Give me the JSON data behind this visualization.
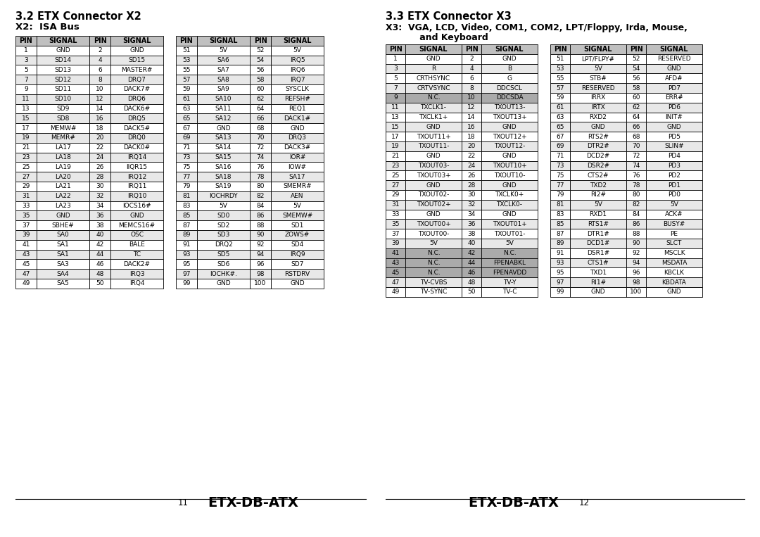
{
  "title_x2": "3.2 ETX Connector X2",
  "subtitle_x2": "X2:  ISA Bus",
  "title_x3": "3.3 ETX Connector X3",
  "subtitle_x3_line1": "X3:  VGA, LCD, Video, COM1, COM2, LPT/Floppy, Irda, Mouse,",
  "subtitle_x3_line2": "      and Keyboard",
  "footer_left_num": "11",
  "footer_right_num": "12",
  "footer_center_left": "ETX-DB-ATX",
  "footer_center_right": "ETX-DB-ATX",
  "bg_color": "#ffffff",
  "header_bg": "#c0c0c0",
  "row_white": "#ffffff",
  "row_gray": "#e8e8e8",
  "highlight_bg": "#aaaaaa",
  "x2_table1": [
    [
      1,
      "GND",
      2,
      "GND"
    ],
    [
      3,
      "SD14",
      4,
      "SD15"
    ],
    [
      5,
      "SD13",
      6,
      "MASTER#"
    ],
    [
      7,
      "SD12",
      8,
      "DRQ7"
    ],
    [
      9,
      "SD11",
      10,
      "DACK7#"
    ],
    [
      11,
      "SD10",
      12,
      "DRQ6"
    ],
    [
      13,
      "SD9",
      14,
      "DACK6#"
    ],
    [
      15,
      "SD8",
      16,
      "DRQ5"
    ],
    [
      17,
      "MEMW#",
      18,
      "DACK5#"
    ],
    [
      19,
      "MEMR#",
      20,
      "DRQ0"
    ],
    [
      21,
      "LA17",
      22,
      "DACK0#"
    ],
    [
      23,
      "LA18",
      24,
      "IRQ14"
    ],
    [
      25,
      "LA19",
      26,
      "IIQR15"
    ],
    [
      27,
      "LA20",
      28,
      "IRQ12"
    ],
    [
      29,
      "LA21",
      30,
      "IRQ11"
    ],
    [
      31,
      "LA22",
      32,
      "IRQ10"
    ],
    [
      33,
      "LA23",
      34,
      "IOCS16#"
    ],
    [
      35,
      "GND",
      36,
      "GND"
    ],
    [
      37,
      "SBHE#",
      38,
      "MEMCS16#"
    ],
    [
      39,
      "SA0",
      40,
      "OSC"
    ],
    [
      41,
      "SA1",
      42,
      "BALE"
    ],
    [
      43,
      "SA1",
      44,
      "TC"
    ],
    [
      45,
      "SA3",
      46,
      "DACK2#"
    ],
    [
      47,
      "SA4",
      48,
      "IRQ3"
    ],
    [
      49,
      "SA5",
      50,
      "IRQ4"
    ]
  ],
  "x2_table2": [
    [
      51,
      "5V",
      52,
      "5V"
    ],
    [
      53,
      "SA6",
      54,
      "IRQ5"
    ],
    [
      55,
      "SA7",
      56,
      "IRQ6"
    ],
    [
      57,
      "SA8",
      58,
      "IRQ7"
    ],
    [
      59,
      "SA9",
      60,
      "SYSCLK"
    ],
    [
      61,
      "SA10",
      62,
      "REFSH#"
    ],
    [
      63,
      "SA11",
      64,
      "REQ1"
    ],
    [
      65,
      "SA12",
      66,
      "DACK1#"
    ],
    [
      67,
      "GND",
      68,
      "GND"
    ],
    [
      69,
      "SA13",
      70,
      "DRQ3"
    ],
    [
      71,
      "SA14",
      72,
      "DACK3#"
    ],
    [
      73,
      "SA15",
      74,
      "IOR#"
    ],
    [
      75,
      "SA16",
      76,
      "IOW#"
    ],
    [
      77,
      "SA18",
      78,
      "SA17"
    ],
    [
      79,
      "SA19",
      80,
      "SMEMR#"
    ],
    [
      81,
      "IOCHRDY",
      82,
      "AEN"
    ],
    [
      83,
      "5V",
      84,
      "5V"
    ],
    [
      85,
      "SD0",
      86,
      "SMEMW#"
    ],
    [
      87,
      "SD2",
      88,
      "SD1"
    ],
    [
      89,
      "SD3",
      90,
      "ZOWS#"
    ],
    [
      91,
      "DRQ2",
      92,
      "SD4"
    ],
    [
      93,
      "SD5",
      94,
      "IRQ9"
    ],
    [
      95,
      "SD6",
      96,
      "SD7"
    ],
    [
      97,
      "IOCHK#.",
      98,
      "RSTDRV"
    ],
    [
      99,
      "GND",
      100,
      "GND"
    ]
  ],
  "x3_table1": [
    [
      1,
      "GND",
      2,
      "GND",
      false
    ],
    [
      3,
      "R",
      4,
      "B",
      false
    ],
    [
      5,
      "CRTHSYNC",
      6,
      "G",
      false
    ],
    [
      7,
      "CRTVSYNC",
      8,
      "DDCSCL",
      false
    ],
    [
      9,
      "N.C.",
      10,
      "DDCSDA",
      true
    ],
    [
      11,
      "TXCLK1-",
      12,
      "TXOUT13-",
      false
    ],
    [
      13,
      "TXCLK1+",
      14,
      "TXOUT13+",
      false
    ],
    [
      15,
      "GND",
      16,
      "GND",
      false
    ],
    [
      17,
      "TXOUT11+",
      18,
      "TXOUT12+",
      false
    ],
    [
      19,
      "TXOUT11-",
      20,
      "TXOUT12-",
      false
    ],
    [
      21,
      "GND",
      22,
      "GND",
      false
    ],
    [
      23,
      "TXOUT03-",
      24,
      "TXOUT10+",
      false
    ],
    [
      25,
      "TXOUT03+",
      26,
      "TXOUT10-",
      false
    ],
    [
      27,
      "GND",
      28,
      "GND",
      false
    ],
    [
      29,
      "TXOUT02-",
      30,
      "TXCLK0+",
      false
    ],
    [
      31,
      "TXOUT02+",
      32,
      "TXCLK0-",
      false
    ],
    [
      33,
      "GND",
      34,
      "GND",
      false
    ],
    [
      35,
      "TXOUT00+",
      36,
      "TXOUT01+",
      false
    ],
    [
      37,
      "TXOUT00-",
      38,
      "TXOUT01-",
      false
    ],
    [
      39,
      "5V",
      40,
      "5V",
      false
    ],
    [
      41,
      "N.C.",
      42,
      "N.C.",
      true
    ],
    [
      43,
      "N.C.",
      44,
      "FPENABKL",
      true
    ],
    [
      45,
      "N.C.",
      46,
      "FPENAVDD",
      true
    ],
    [
      47,
      "TV-CVBS",
      48,
      "TV-Y",
      false
    ],
    [
      49,
      "TV-SYNC",
      50,
      "TV-C",
      false
    ]
  ],
  "x3_table2": [
    [
      51,
      "LPT/FLPY#",
      52,
      "RESERVED",
      false
    ],
    [
      53,
      "5V",
      54,
      "GND",
      false
    ],
    [
      55,
      "STB#",
      56,
      "AFD#",
      false
    ],
    [
      57,
      "RESERVED",
      58,
      "PD7",
      false
    ],
    [
      59,
      "IRRX",
      60,
      "ERR#",
      false
    ],
    [
      61,
      "IRTX",
      62,
      "PD6",
      false
    ],
    [
      63,
      "RXD2",
      64,
      "INIT#",
      false
    ],
    [
      65,
      "GND",
      66,
      "GND",
      false
    ],
    [
      67,
      "RTS2#",
      68,
      "PD5",
      false
    ],
    [
      69,
      "DTR2#",
      70,
      "SLIN#",
      false
    ],
    [
      71,
      "DCD2#",
      72,
      "PD4",
      false
    ],
    [
      73,
      "DSR2#",
      74,
      "PD3",
      false
    ],
    [
      75,
      "CTS2#",
      76,
      "PD2",
      false
    ],
    [
      77,
      "TXD2",
      78,
      "PD1",
      false
    ],
    [
      79,
      "RI2#",
      80,
      "PD0",
      false
    ],
    [
      81,
      "5V",
      82,
      "5V",
      false
    ],
    [
      83,
      "RXD1",
      84,
      "ACK#",
      false
    ],
    [
      85,
      "RTS1#",
      86,
      "BUSY#",
      false
    ],
    [
      87,
      "DTR1#",
      88,
      "PE",
      false
    ],
    [
      89,
      "DCD1#",
      90,
      "SLCT",
      false
    ],
    [
      91,
      "DSR1#",
      92,
      "MSCLK",
      false
    ],
    [
      93,
      "CTS1#",
      94,
      "MSDATA",
      false
    ],
    [
      95,
      "TXD1",
      96,
      "KBCLK",
      false
    ],
    [
      97,
      "RI1#",
      98,
      "KBDATA",
      false
    ],
    [
      99,
      "GND",
      100,
      "GND",
      false
    ]
  ]
}
